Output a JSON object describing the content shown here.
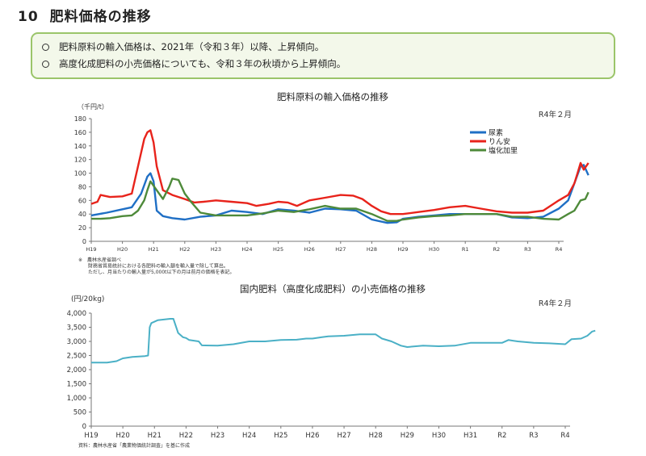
{
  "heading": {
    "number": "10",
    "title": "肥料価格の推移"
  },
  "summary": [
    "肥料原料の輸入価格は、2021年（令和３年）以降、上昇傾向。",
    "高度化成肥料の小売価格についても、令和３年の秋頃から上昇傾向。"
  ],
  "chart_data": [
    {
      "type": "line",
      "title": "肥料原料の輸入価格の推移",
      "ylabel": "（千円/t）",
      "date_label": "R4年２月",
      "ylim": [
        0,
        180
      ],
      "yticks": [
        0,
        20,
        40,
        60,
        80,
        100,
        120,
        140,
        160,
        180
      ],
      "categories": [
        "H19",
        "H20",
        "H21",
        "H22",
        "H23",
        "H24",
        "H25",
        "H26",
        "H27",
        "H28",
        "H29",
        "H30",
        "R1",
        "R2",
        "R3",
        "R4"
      ],
      "x_period": "monthly, H19 Jan to R4 Feb",
      "legend_position": "top-right",
      "series": [
        {
          "name": "尿素",
          "color": "#1f6fc5",
          "values": [
            [
              0,
              38
            ],
            [
              0.5,
              42
            ],
            [
              1.0,
              47
            ],
            [
              1.3,
              50
            ],
            [
              1.6,
              70
            ],
            [
              1.8,
              95
            ],
            [
              1.9,
              100
            ],
            [
              2.0,
              88
            ],
            [
              2.1,
              45
            ],
            [
              2.3,
              37
            ],
            [
              2.6,
              34
            ],
            [
              3.0,
              32
            ],
            [
              3.5,
              36
            ],
            [
              4.0,
              38
            ],
            [
              4.5,
              45
            ],
            [
              5.0,
              43
            ],
            [
              5.5,
              40
            ],
            [
              6.0,
              47
            ],
            [
              6.5,
              45
            ],
            [
              7.0,
              42
            ],
            [
              7.5,
              48
            ],
            [
              8.0,
              47
            ],
            [
              8.5,
              45
            ],
            [
              9.0,
              32
            ],
            [
              9.5,
              27
            ],
            [
              9.8,
              28
            ],
            [
              10.0,
              33
            ],
            [
              10.5,
              36
            ],
            [
              11.0,
              38
            ],
            [
              11.5,
              40
            ],
            [
              12.0,
              40
            ],
            [
              12.5,
              40
            ],
            [
              13.0,
              40
            ],
            [
              13.5,
              35
            ],
            [
              14.0,
              34
            ],
            [
              14.5,
              36
            ],
            [
              15.0,
              48
            ],
            [
              15.3,
              60
            ],
            [
              15.5,
              85
            ],
            [
              15.7,
              110
            ],
            [
              15.8,
              112
            ],
            [
              15.95,
              97
            ]
          ]
        },
        {
          "name": "りん安",
          "color": "#e8231b",
          "values": [
            [
              0,
              55
            ],
            [
              0.2,
              58
            ],
            [
              0.3,
              68
            ],
            [
              0.6,
              65
            ],
            [
              1.0,
              66
            ],
            [
              1.3,
              70
            ],
            [
              1.5,
              110
            ],
            [
              1.7,
              150
            ],
            [
              1.8,
              160
            ],
            [
              1.9,
              163
            ],
            [
              2.0,
              145
            ],
            [
              2.1,
              110
            ],
            [
              2.3,
              75
            ],
            [
              2.6,
              68
            ],
            [
              3.0,
              62
            ],
            [
              3.3,
              57
            ],
            [
              3.6,
              58
            ],
            [
              4.0,
              60
            ],
            [
              4.5,
              58
            ],
            [
              5.0,
              56
            ],
            [
              5.3,
              52
            ],
            [
              5.7,
              55
            ],
            [
              6.0,
              58
            ],
            [
              6.3,
              57
            ],
            [
              6.6,
              52
            ],
            [
              7.0,
              60
            ],
            [
              7.5,
              64
            ],
            [
              8.0,
              68
            ],
            [
              8.4,
              67
            ],
            [
              8.7,
              62
            ],
            [
              9.0,
              52
            ],
            [
              9.3,
              44
            ],
            [
              9.6,
              40
            ],
            [
              10.0,
              40
            ],
            [
              10.5,
              43
            ],
            [
              11.0,
              46
            ],
            [
              11.5,
              50
            ],
            [
              12.0,
              52
            ],
            [
              12.5,
              48
            ],
            [
              13.0,
              44
            ],
            [
              13.5,
              42
            ],
            [
              14.0,
              42
            ],
            [
              14.5,
              45
            ],
            [
              15.0,
              60
            ],
            [
              15.3,
              68
            ],
            [
              15.5,
              85
            ],
            [
              15.6,
              100
            ],
            [
              15.7,
              115
            ],
            [
              15.8,
              105
            ],
            [
              15.95,
              115
            ]
          ]
        },
        {
          "name": "塩化加里",
          "color": "#4e8a3a",
          "values": [
            [
              0,
              33
            ],
            [
              0.3,
              33
            ],
            [
              0.6,
              34
            ],
            [
              1.0,
              37
            ],
            [
              1.3,
              38
            ],
            [
              1.5,
              45
            ],
            [
              1.7,
              60
            ],
            [
              1.8,
              75
            ],
            [
              1.9,
              88
            ],
            [
              2.1,
              75
            ],
            [
              2.3,
              62
            ],
            [
              2.5,
              80
            ],
            [
              2.6,
              92
            ],
            [
              2.8,
              90
            ],
            [
              3.0,
              70
            ],
            [
              3.2,
              58
            ],
            [
              3.5,
              42
            ],
            [
              4.0,
              38
            ],
            [
              4.5,
              38
            ],
            [
              5.0,
              38
            ],
            [
              5.5,
              41
            ],
            [
              6.0,
              45
            ],
            [
              6.5,
              43
            ],
            [
              7.0,
              47
            ],
            [
              7.5,
              52
            ],
            [
              8.0,
              48
            ],
            [
              8.5,
              48
            ],
            [
              9.0,
              40
            ],
            [
              9.5,
              30
            ],
            [
              9.8,
              30
            ],
            [
              10.0,
              32
            ],
            [
              10.5,
              35
            ],
            [
              11.0,
              37
            ],
            [
              11.5,
              38
            ],
            [
              12.0,
              40
            ],
            [
              12.5,
              40
            ],
            [
              13.0,
              40
            ],
            [
              13.5,
              36
            ],
            [
              14.0,
              36
            ],
            [
              14.5,
              33
            ],
            [
              15.0,
              32
            ],
            [
              15.3,
              40
            ],
            [
              15.5,
              45
            ],
            [
              15.7,
              60
            ],
            [
              15.85,
              62
            ],
            [
              15.95,
              72
            ]
          ]
        }
      ],
      "notes": [
        "※　農林水産省調べ",
        "財務省貿易統計における各肥料の輸入額を輸入量で除して算出。",
        "ただし、月当たりの輸入量が5,000t以下の月は前月の価格を表記。"
      ]
    },
    {
      "type": "line",
      "title": "国内肥料（高度化成肥料）の小売価格の推移",
      "ylabel": "(円/20kg)",
      "date_label": "R4年２月",
      "ylim": [
        0,
        4000
      ],
      "yticks": [
        0,
        500,
        1000,
        1500,
        2000,
        2500,
        3000,
        3500,
        4000
      ],
      "categories": [
        "H19",
        "H20",
        "H21",
        "H22",
        "H23",
        "H24",
        "H25",
        "H26",
        "H27",
        "H28",
        "H29",
        "H30",
        "H31",
        "R2",
        "R3",
        "R4"
      ],
      "x_period": "monthly, H19 Jan to R4 Feb",
      "series": [
        {
          "name": "",
          "color": "#4ab0c6",
          "values": [
            [
              0,
              2250
            ],
            [
              0.5,
              2250
            ],
            [
              0.8,
              2300
            ],
            [
              1.0,
              2400
            ],
            [
              1.3,
              2450
            ],
            [
              1.7,
              2480
            ],
            [
              1.8,
              2500
            ],
            [
              1.85,
              3500
            ],
            [
              1.9,
              3650
            ],
            [
              2.1,
              3750
            ],
            [
              2.5,
              3800
            ],
            [
              2.6,
              3800
            ],
            [
              2.75,
              3300
            ],
            [
              2.9,
              3150
            ],
            [
              3.0,
              3120
            ],
            [
              3.1,
              3050
            ],
            [
              3.4,
              3000
            ],
            [
              3.5,
              2860
            ],
            [
              4.0,
              2850
            ],
            [
              4.5,
              2900
            ],
            [
              5.0,
              3000
            ],
            [
              5.5,
              3000
            ],
            [
              6.0,
              3050
            ],
            [
              6.5,
              3060
            ],
            [
              6.8,
              3100
            ],
            [
              7.0,
              3100
            ],
            [
              7.3,
              3150
            ],
            [
              7.5,
              3180
            ],
            [
              8.0,
              3200
            ],
            [
              8.5,
              3250
            ],
            [
              9.0,
              3250
            ],
            [
              9.2,
              3100
            ],
            [
              9.5,
              3000
            ],
            [
              9.8,
              2850
            ],
            [
              10.0,
              2800
            ],
            [
              10.5,
              2850
            ],
            [
              11.0,
              2830
            ],
            [
              11.5,
              2850
            ],
            [
              12.0,
              2950
            ],
            [
              12.5,
              2950
            ],
            [
              13.0,
              2950
            ],
            [
              13.2,
              3050
            ],
            [
              13.5,
              3000
            ],
            [
              14.0,
              2950
            ],
            [
              14.5,
              2930
            ],
            [
              15.0,
              2900
            ],
            [
              15.2,
              3080
            ],
            [
              15.5,
              3100
            ],
            [
              15.7,
              3200
            ],
            [
              15.85,
              3350
            ],
            [
              15.95,
              3380
            ]
          ]
        }
      ],
      "notes": [
        "資料：農林水産省「農業物価統計調査」を基に作成"
      ]
    }
  ]
}
